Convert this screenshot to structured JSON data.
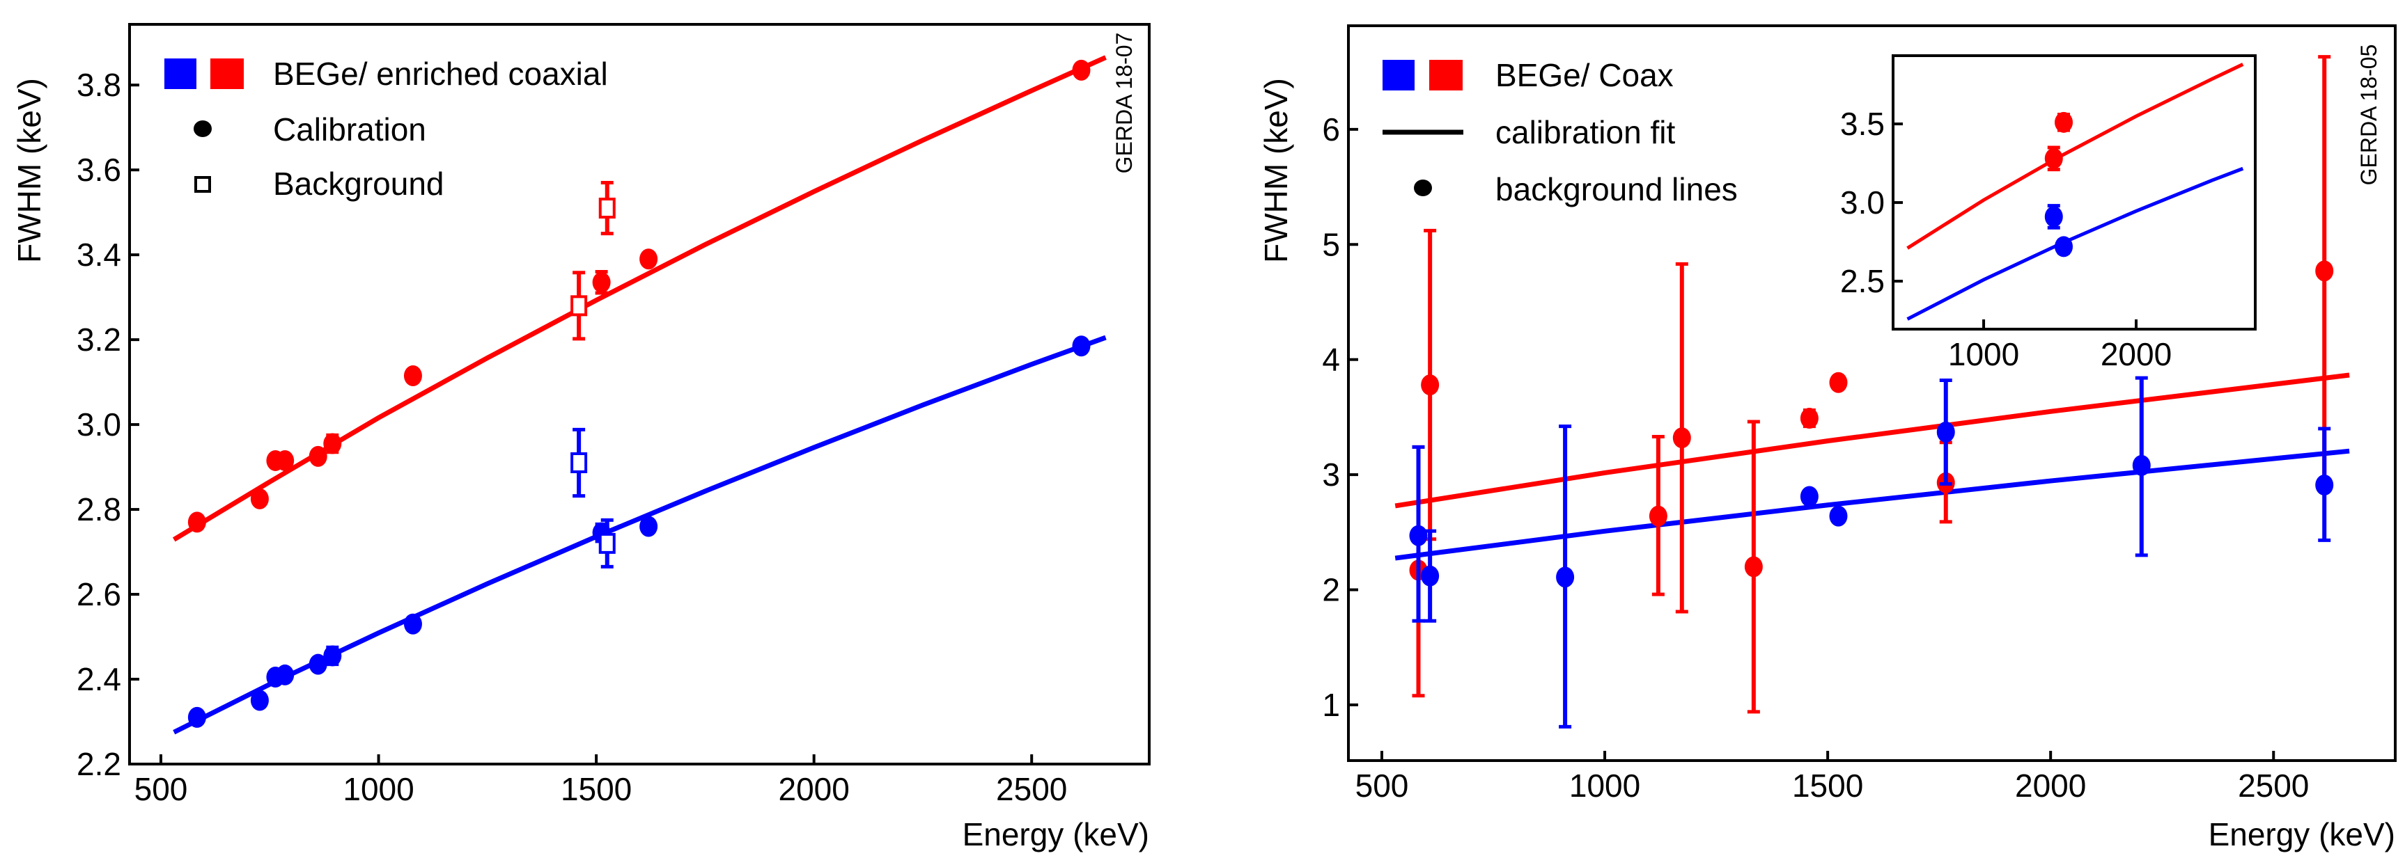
{
  "colors": {
    "bege": "#0000ff",
    "coax": "#ff0000",
    "axis": "#000000"
  },
  "chart_data": [
    {
      "type": "scatter",
      "panel": "left",
      "xlabel": "Energy (keV)",
      "ylabel": "FWHM (keV)",
      "xlim": [
        428,
        2770
      ],
      "ylim": [
        2.2,
        3.943
      ],
      "xticks": [
        500,
        1000,
        1500,
        2000,
        2500
      ],
      "xtick_labels": [
        "500",
        "1000",
        "1500",
        "2000",
        "2500"
      ],
      "yticks": [
        2.2,
        2.4,
        2.6,
        2.8,
        3.0,
        3.2,
        3.4,
        3.6,
        3.8
      ],
      "ytick_labels": [
        "2.2",
        "2.4",
        "2.6",
        "2.8",
        "3.0",
        "3.2",
        "3.4",
        "3.6",
        "3.8"
      ],
      "stamp": "GERDA 18-07",
      "legend": {
        "placement": "top-left",
        "entries": [
          "BEGe/ enriched coaxial",
          "Calibration",
          "Background"
        ]
      },
      "series": [
        {
          "name": "enriched coaxial calibration",
          "color": "#ff0000",
          "marker": "dot",
          "points": [
            [
              583,
              2.77,
              0
            ],
            [
              727,
              2.825,
              0
            ],
            [
              763,
              2.915,
              0
            ],
            [
              785,
              2.915,
              0
            ],
            [
              861,
              2.925,
              0
            ],
            [
              894,
              2.955,
              0.02
            ],
            [
              1079,
              3.115,
              0
            ],
            [
              1512,
              3.335,
              0.025
            ],
            [
              1620,
              3.39,
              0
            ],
            [
              2614,
              3.835,
              0
            ]
          ]
        },
        {
          "name": "BEGe calibration",
          "color": "#0000ff",
          "marker": "dot",
          "points": [
            [
              583,
              2.31,
              0
            ],
            [
              727,
              2.35,
              0
            ],
            [
              763,
              2.405,
              0
            ],
            [
              785,
              2.41,
              0
            ],
            [
              861,
              2.435,
              0
            ],
            [
              894,
              2.455,
              0.02
            ],
            [
              1079,
              2.53,
              0
            ],
            [
              1512,
              2.745,
              0.02
            ],
            [
              1620,
              2.76,
              0
            ],
            [
              2614,
              3.185,
              0
            ]
          ]
        },
        {
          "name": "enriched coaxial background",
          "color": "#ff0000",
          "marker": "open-square",
          "points": [
            [
              1460,
              3.28,
              0.078
            ],
            [
              1525,
              3.51,
              0.06
            ]
          ]
        },
        {
          "name": "BEGe background",
          "color": "#0000ff",
          "marker": "open-square",
          "points": [
            [
              1460,
              2.91,
              0.078
            ],
            [
              1525,
              2.72,
              0.055
            ]
          ]
        }
      ],
      "fits": [
        {
          "name": "coax fit",
          "color": "#ff0000",
          "points": [
            [
              530,
              2.729
            ],
            [
              750,
              2.865
            ],
            [
              1000,
              3.016
            ],
            [
              1250,
              3.157
            ],
            [
              1500,
              3.293
            ],
            [
              1750,
              3.424
            ],
            [
              2000,
              3.549
            ],
            [
              2250,
              3.67
            ],
            [
              2500,
              3.787
            ],
            [
              2670,
              3.865
            ]
          ]
        },
        {
          "name": "BEGe fit",
          "color": "#0000ff",
          "points": [
            [
              530,
              2.275
            ],
            [
              750,
              2.388
            ],
            [
              1000,
              2.509
            ],
            [
              1250,
              2.625
            ],
            [
              1500,
              2.736
            ],
            [
              1750,
              2.843
            ],
            [
              2000,
              2.946
            ],
            [
              2250,
              3.046
            ],
            [
              2500,
              3.142
            ],
            [
              2670,
              3.205
            ]
          ]
        }
      ]
    },
    {
      "type": "scatter",
      "panel": "right",
      "xlabel": "Energy (keV)",
      "ylabel": "FWHM (keV)",
      "xlim": [
        425,
        2773
      ],
      "ylim": [
        0.516,
        6.9
      ],
      "xticks": [
        500,
        1000,
        1500,
        2000,
        2500
      ],
      "xtick_labels": [
        "500",
        "1000",
        "1500",
        "2000",
        "2500"
      ],
      "yticks": [
        1,
        2,
        3,
        4,
        5,
        6
      ],
      "ytick_labels": [
        "1",
        "2",
        "3",
        "4",
        "5",
        "6"
      ],
      "stamp": "GERDA 18-05",
      "legend": {
        "placement": "top-left",
        "entries": [
          "BEGe/ Coax",
          "calibration fit",
          "background lines"
        ]
      },
      "series": [
        {
          "name": "Coax background lines",
          "color": "#ff0000",
          "marker": "dot",
          "points": [
            [
              582,
              2.17,
              1.08,
              3.24
            ],
            [
              608,
              3.78,
              2.44,
              5.12
            ],
            [
              1120,
              2.64,
              1.96,
              3.33
            ],
            [
              1173,
              3.32,
              1.81,
              4.83
            ],
            [
              1334,
              2.2,
              0.94,
              3.46
            ],
            [
              1459,
              3.49,
              3.42,
              3.56
            ],
            [
              1524,
              3.8,
              3.77,
              3.83
            ],
            [
              1765,
              2.93,
              2.59,
              3.28
            ],
            [
              2614,
              4.77,
              2.9,
              6.63
            ]
          ]
        },
        {
          "name": "BEGe background lines",
          "color": "#0000ff",
          "marker": "dot",
          "points": [
            [
              582,
              2.47,
              1.73,
              3.24
            ],
            [
              608,
              2.12,
              1.73,
              2.51
            ],
            [
              911,
              2.11,
              0.81,
              3.42
            ],
            [
              1459,
              2.81,
              2.78,
              2.84
            ],
            [
              1524,
              2.64,
              2.61,
              2.67
            ],
            [
              1765,
              3.37,
              2.92,
              3.82
            ],
            [
              2204,
              3.08,
              2.3,
              3.84
            ],
            [
              2614,
              2.91,
              2.43,
              3.4
            ]
          ]
        }
      ],
      "fits": [
        {
          "name": "coax fit",
          "color": "#ff0000",
          "points": [
            [
              530,
              2.729
            ],
            [
              1000,
              3.016
            ],
            [
              1500,
              3.293
            ],
            [
              2000,
              3.549
            ],
            [
              2670,
              3.865
            ]
          ]
        },
        {
          "name": "BEGe fit",
          "color": "#0000ff",
          "points": [
            [
              530,
              2.275
            ],
            [
              1000,
              2.509
            ],
            [
              1500,
              2.736
            ],
            [
              2000,
              2.946
            ],
            [
              2670,
              3.205
            ]
          ]
        }
      ],
      "inset": {
        "xlim": [
          406,
          2781
        ],
        "ylim": [
          2.195,
          3.934
        ],
        "xticks": [
          1000,
          2000
        ],
        "xtick_labels": [
          "1000",
          "2000"
        ],
        "yticks": [
          2.5,
          3.0,
          3.5
        ],
        "ytick_labels": [
          "2.5",
          "3.0",
          "3.5"
        ],
        "series": [
          {
            "name": "Coax",
            "color": "#ff0000",
            "points": [
              [
                1460,
                3.28,
                3.21,
                3.35
              ],
              [
                1525,
                3.51,
                3.46,
                3.56
              ]
            ]
          },
          {
            "name": "BEGe",
            "color": "#0000ff",
            "points": [
              [
                1460,
                2.91,
                2.84,
                2.98
              ],
              [
                1525,
                2.72,
                2.68,
                2.76
              ]
            ]
          }
        ],
        "fits": [
          {
            "name": "coax fit",
            "color": "#ff0000",
            "points": [
              [
                500,
                2.71
              ],
              [
                1000,
                3.016
              ],
              [
                1500,
                3.293
              ],
              [
                2000,
                3.549
              ],
              [
                2500,
                3.787
              ],
              [
                2700,
                3.879
              ]
            ]
          },
          {
            "name": "BEGe fit",
            "color": "#0000ff",
            "points": [
              [
                500,
                2.259
              ],
              [
                1000,
                2.509
              ],
              [
                1500,
                2.736
              ],
              [
                2000,
                2.946
              ],
              [
                2500,
                3.142
              ],
              [
                2700,
                3.216
              ]
            ]
          }
        ]
      }
    }
  ]
}
